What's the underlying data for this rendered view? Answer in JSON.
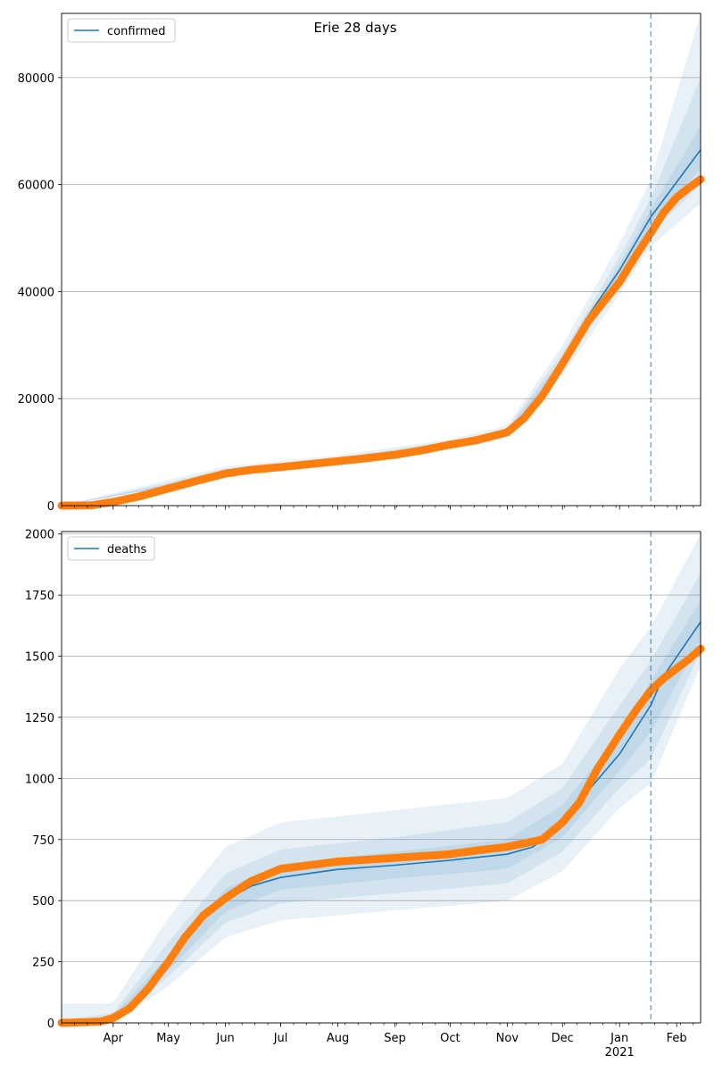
{
  "title": "Erie 28 days",
  "colors": {
    "model": "#1f77b4",
    "observed": "#ff7f0e",
    "band": "#1f77b4",
    "grid": "#b0b0b0",
    "forecast_line": "#1f77b4"
  },
  "x_axis": {
    "range": [
      "2020-03-04",
      "2021-02-14"
    ],
    "month_labels": [
      {
        "date": "2020-04-01",
        "label": "Apr"
      },
      {
        "date": "2020-05-01",
        "label": "May"
      },
      {
        "date": "2020-06-01",
        "label": "Jun"
      },
      {
        "date": "2020-07-01",
        "label": "Jul"
      },
      {
        "date": "2020-08-01",
        "label": "Aug"
      },
      {
        "date": "2020-09-01",
        "label": "Sep"
      },
      {
        "date": "2020-10-01",
        "label": "Oct"
      },
      {
        "date": "2020-11-01",
        "label": "Nov"
      },
      {
        "date": "2020-12-01",
        "label": "Dec"
      },
      {
        "date": "2021-01-01",
        "label": "Jan"
      },
      {
        "date": "2021-02-01",
        "label": "Feb"
      }
    ],
    "year_label": "2021",
    "forecast_start": "2021-01-18"
  },
  "chart_data": [
    {
      "type": "line",
      "legend": "confirmed",
      "legend_position": "top-left",
      "grid": "y",
      "ylim": [
        0,
        92000
      ],
      "yticks": [
        "0",
        "20000",
        "40000",
        "60000",
        "80000"
      ],
      "model": [
        [
          "2020-03-04",
          0
        ],
        [
          "2020-04-01",
          500
        ],
        [
          "2020-05-01",
          3800
        ],
        [
          "2020-06-01",
          6300
        ],
        [
          "2020-07-01",
          7300
        ],
        [
          "2020-08-01",
          8500
        ],
        [
          "2020-09-01",
          9800
        ],
        [
          "2020-10-01",
          11500
        ],
        [
          "2020-10-25",
          12800
        ],
        [
          "2020-11-01",
          13800
        ],
        [
          "2020-11-10",
          16200
        ],
        [
          "2020-11-20",
          20500
        ],
        [
          "2020-12-01",
          26800
        ],
        [
          "2020-12-15",
          35500
        ],
        [
          "2021-01-01",
          44000
        ],
        [
          "2021-01-18",
          54000
        ],
        [
          "2021-02-14",
          66500
        ]
      ],
      "observed": [
        [
          "2020-03-04",
          0
        ],
        [
          "2020-03-20",
          50
        ],
        [
          "2020-04-01",
          700
        ],
        [
          "2020-04-15",
          1700
        ],
        [
          "2020-05-01",
          3200
        ],
        [
          "2020-05-15",
          4500
        ],
        [
          "2020-06-01",
          6000
        ],
        [
          "2020-06-15",
          6700
        ],
        [
          "2020-07-01",
          7200
        ],
        [
          "2020-07-15",
          7700
        ],
        [
          "2020-08-01",
          8300
        ],
        [
          "2020-08-15",
          8800
        ],
        [
          "2020-09-01",
          9500
        ],
        [
          "2020-09-15",
          10300
        ],
        [
          "2020-10-01",
          11400
        ],
        [
          "2020-10-15",
          12200
        ],
        [
          "2020-11-01",
          13700
        ],
        [
          "2020-11-10",
          16300
        ],
        [
          "2020-11-20",
          20500
        ],
        [
          "2020-12-01",
          26500
        ],
        [
          "2020-12-15",
          34500
        ],
        [
          "2021-01-01",
          41800
        ],
        [
          "2021-01-10",
          46800
        ],
        [
          "2021-01-18",
          51000
        ],
        [
          "2021-01-25",
          54800
        ],
        [
          "2021-02-01",
          57600
        ],
        [
          "2021-02-08",
          59500
        ],
        [
          "2021-02-14",
          61000
        ]
      ],
      "bands": [
        {
          "lower": [
            [
              "2020-03-04",
              0
            ],
            [
              "2020-05-01",
              3300
            ],
            [
              "2020-06-01",
              5600
            ],
            [
              "2020-08-01",
              7800
            ],
            [
              "2020-10-01",
              10800
            ],
            [
              "2020-11-01",
              13000
            ],
            [
              "2020-12-01",
              24500
            ],
            [
              "2021-01-01",
              39500
            ],
            [
              "2021-01-18",
              48500
            ],
            [
              "2021-02-14",
              56500
            ]
          ],
          "upper": [
            [
              "2020-03-04",
              0
            ],
            [
              "2020-05-01",
              4800
            ],
            [
              "2020-06-01",
              7300
            ],
            [
              "2020-08-01",
              9400
            ],
            [
              "2020-10-01",
              12400
            ],
            [
              "2020-11-01",
              15000
            ],
            [
              "2020-12-01",
              30000
            ],
            [
              "2021-01-01",
              49000
            ],
            [
              "2021-01-18",
              61000
            ],
            [
              "2021-02-14",
              92000
            ]
          ]
        },
        {
          "lower": [
            [
              "2020-03-04",
              0
            ],
            [
              "2020-05-01",
              3500
            ],
            [
              "2020-06-01",
              5900
            ],
            [
              "2020-08-01",
              8100
            ],
            [
              "2020-10-01",
              11100
            ],
            [
              "2020-11-01",
              13400
            ],
            [
              "2020-12-01",
              25500
            ],
            [
              "2021-01-01",
              41500
            ],
            [
              "2021-01-18",
              51000
            ],
            [
              "2021-02-14",
              60000
            ]
          ],
          "upper": [
            [
              "2020-03-04",
              0
            ],
            [
              "2020-05-01",
              4300
            ],
            [
              "2020-06-01",
              6900
            ],
            [
              "2020-08-01",
              9000
            ],
            [
              "2020-10-01",
              12000
            ],
            [
              "2020-11-01",
              14400
            ],
            [
              "2020-12-01",
              28500
            ],
            [
              "2021-01-01",
              46500
            ],
            [
              "2021-01-18",
              57500
            ],
            [
              "2021-02-14",
              80000
            ]
          ]
        },
        {
          "lower": [
            [
              "2020-03-04",
              0
            ],
            [
              "2020-05-01",
              3650
            ],
            [
              "2020-06-01",
              6100
            ],
            [
              "2020-08-01",
              8300
            ],
            [
              "2020-10-01",
              11300
            ],
            [
              "2020-11-01",
              13600
            ],
            [
              "2020-12-01",
              26200
            ],
            [
              "2021-01-01",
              43000
            ],
            [
              "2021-01-18",
              52500
            ],
            [
              "2021-02-14",
              63000
            ]
          ],
          "upper": [
            [
              "2020-03-04",
              0
            ],
            [
              "2020-05-01",
              4000
            ],
            [
              "2020-06-01",
              6600
            ],
            [
              "2020-08-01",
              8700
            ],
            [
              "2020-10-01",
              11700
            ],
            [
              "2020-11-01",
              14000
            ],
            [
              "2020-12-01",
              27500
            ],
            [
              "2021-01-01",
              45000
            ],
            [
              "2021-01-18",
              55500
            ],
            [
              "2021-02-14",
              71000
            ]
          ]
        }
      ]
    },
    {
      "type": "line",
      "legend": "deaths",
      "legend_position": "top-left",
      "grid": "y",
      "ylim": [
        0,
        2010
      ],
      "yticks": [
        "0",
        "250",
        "500",
        "750",
        "1000",
        "1250",
        "1500",
        "1750",
        "2000"
      ],
      "model": [
        [
          "2020-03-04",
          0
        ],
        [
          "2020-04-01",
          20
        ],
        [
          "2020-04-15",
          90
        ],
        [
          "2020-05-01",
          240
        ],
        [
          "2020-05-15",
          390
        ],
        [
          "2020-06-01",
          500
        ],
        [
          "2020-06-15",
          560
        ],
        [
          "2020-07-01",
          595
        ],
        [
          "2020-08-01",
          628
        ],
        [
          "2020-09-01",
          645
        ],
        [
          "2020-10-01",
          665
        ],
        [
          "2020-11-01",
          690
        ],
        [
          "2020-11-15",
          720
        ],
        [
          "2020-12-01",
          820
        ],
        [
          "2020-12-15",
          950
        ],
        [
          "2021-01-01",
          1100
        ],
        [
          "2021-01-18",
          1300
        ],
        [
          "2021-01-25",
          1420
        ],
        [
          "2021-02-14",
          1640
        ]
      ],
      "observed": [
        [
          "2020-03-04",
          0
        ],
        [
          "2020-03-25",
          5
        ],
        [
          "2020-04-01",
          20
        ],
        [
          "2020-04-10",
          60
        ],
        [
          "2020-04-20",
          140
        ],
        [
          "2020-05-01",
          250
        ],
        [
          "2020-05-10",
          350
        ],
        [
          "2020-05-20",
          440
        ],
        [
          "2020-06-01",
          510
        ],
        [
          "2020-06-15",
          580
        ],
        [
          "2020-07-01",
          630
        ],
        [
          "2020-08-01",
          660
        ],
        [
          "2020-09-01",
          675
        ],
        [
          "2020-10-01",
          690
        ],
        [
          "2020-10-15",
          705
        ],
        [
          "2020-11-01",
          720
        ],
        [
          "2020-11-20",
          750
        ],
        [
          "2020-12-01",
          820
        ],
        [
          "2020-12-10",
          900
        ],
        [
          "2020-12-20",
          1040
        ],
        [
          "2021-01-01",
          1180
        ],
        [
          "2021-01-10",
          1280
        ],
        [
          "2021-01-18",
          1360
        ],
        [
          "2021-01-25",
          1410
        ],
        [
          "2021-02-01",
          1450
        ],
        [
          "2021-02-08",
          1490
        ],
        [
          "2021-02-14",
          1530
        ]
      ],
      "bands": [
        {
          "lower": [
            [
              "2020-03-04",
              0
            ],
            [
              "2020-04-01",
              0
            ],
            [
              "2020-05-01",
              150
            ],
            [
              "2020-06-01",
              350
            ],
            [
              "2020-07-01",
              420
            ],
            [
              "2020-09-01",
              460
            ],
            [
              "2020-11-01",
              500
            ],
            [
              "2020-12-01",
              620
            ],
            [
              "2021-01-01",
              880
            ],
            [
              "2021-01-18",
              980
            ],
            [
              "2021-02-14",
              1460
            ]
          ],
          "upper": [
            [
              "2020-03-04",
              80
            ],
            [
              "2020-04-01",
              80
            ],
            [
              "2020-05-01",
              430
            ],
            [
              "2020-06-01",
              720
            ],
            [
              "2020-07-01",
              820
            ],
            [
              "2020-09-01",
              870
            ],
            [
              "2020-11-01",
              920
            ],
            [
              "2020-12-01",
              1060
            ],
            [
              "2021-01-01",
              1450
            ],
            [
              "2021-01-18",
              1620
            ],
            [
              "2021-02-14",
              2000
            ]
          ]
        },
        {
          "lower": [
            [
              "2020-03-04",
              0
            ],
            [
              "2020-04-01",
              5
            ],
            [
              "2020-05-01",
              190
            ],
            [
              "2020-06-01",
              410
            ],
            [
              "2020-07-01",
              490
            ],
            [
              "2020-09-01",
              530
            ],
            [
              "2020-11-01",
              570
            ],
            [
              "2020-12-01",
              700
            ],
            [
              "2021-01-01",
              960
            ],
            [
              "2021-01-18",
              1080
            ],
            [
              "2021-02-14",
              1520
            ]
          ],
          "upper": [
            [
              "2020-03-04",
              10
            ],
            [
              "2020-04-01",
              40
            ],
            [
              "2020-05-01",
              330
            ],
            [
              "2020-06-01",
              610
            ],
            [
              "2020-07-01",
              710
            ],
            [
              "2020-09-01",
              760
            ],
            [
              "2020-11-01",
              820
            ],
            [
              "2020-12-01",
              960
            ],
            [
              "2021-01-01",
              1300
            ],
            [
              "2021-01-18",
              1480
            ],
            [
              "2021-02-14",
              1840
            ]
          ]
        },
        {
          "lower": [
            [
              "2020-03-04",
              0
            ],
            [
              "2020-04-01",
              10
            ],
            [
              "2020-05-01",
              215
            ],
            [
              "2020-06-01",
              455
            ],
            [
              "2020-07-01",
              545
            ],
            [
              "2020-09-01",
              590
            ],
            [
              "2020-11-01",
              630
            ],
            [
              "2020-12-01",
              760
            ],
            [
              "2021-01-01",
              1030
            ],
            [
              "2021-01-18",
              1190
            ],
            [
              "2021-02-14",
              1570
            ]
          ],
          "upper": [
            [
              "2020-03-04",
              5
            ],
            [
              "2020-04-01",
              30
            ],
            [
              "2020-05-01",
              275
            ],
            [
              "2020-06-01",
              550
            ],
            [
              "2020-07-01",
              650
            ],
            [
              "2020-09-01",
              700
            ],
            [
              "2020-11-01",
              750
            ],
            [
              "2020-12-01",
              890
            ],
            [
              "2021-01-01",
              1180
            ],
            [
              "2021-01-18",
              1400
            ],
            [
              "2021-02-14",
              1730
            ]
          ]
        }
      ]
    }
  ]
}
